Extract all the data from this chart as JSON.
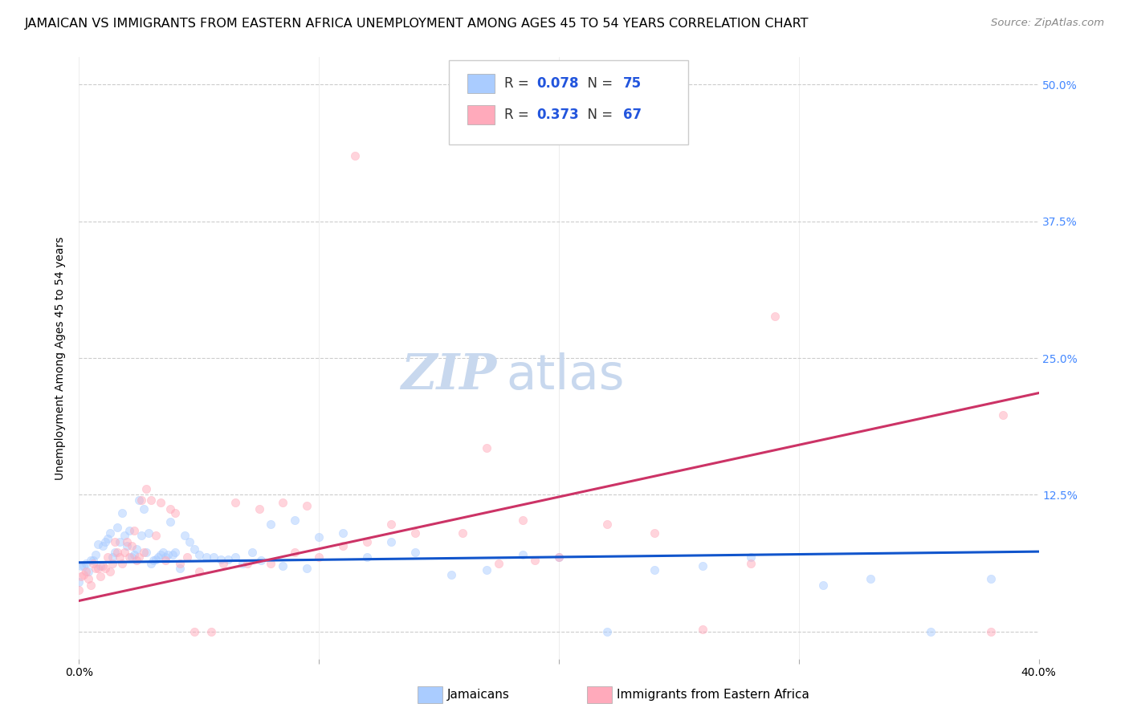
{
  "title": "JAMAICAN VS IMMIGRANTS FROM EASTERN AFRICA UNEMPLOYMENT AMONG AGES 45 TO 54 YEARS CORRELATION CHART",
  "source": "Source: ZipAtlas.com",
  "ylabel": "Unemployment Among Ages 45 to 54 years",
  "xlim": [
    0.0,
    0.4
  ],
  "ylim": [
    -0.025,
    0.525
  ],
  "yticks": [
    0.0,
    0.125,
    0.25,
    0.375,
    0.5
  ],
  "ytick_labels": [
    "",
    "12.5%",
    "25.0%",
    "37.5%",
    "50.0%"
  ],
  "xticks": [
    0.0,
    0.1,
    0.2,
    0.3,
    0.4
  ],
  "xtick_labels": [
    "0.0%",
    "",
    "",
    "",
    "40.0%"
  ],
  "background_color": "#ffffff",
  "grid_color": "#cccccc",
  "watermark_zip": "ZIP",
  "watermark_atlas": "atlas",
  "series": [
    {
      "name": "Jamaicans",
      "R": 0.078,
      "N": 75,
      "color": "#aaccff",
      "edge_color": "#aaccff",
      "line_color": "#1155cc",
      "x": [
        0.0,
        0.001,
        0.002,
        0.003,
        0.004,
        0.005,
        0.006,
        0.007,
        0.008,
        0.009,
        0.01,
        0.011,
        0.012,
        0.013,
        0.014,
        0.015,
        0.016,
        0.017,
        0.018,
        0.019,
        0.02,
        0.021,
        0.022,
        0.023,
        0.024,
        0.025,
        0.026,
        0.027,
        0.028,
        0.029,
        0.03,
        0.031,
        0.032,
        0.033,
        0.034,
        0.035,
        0.036,
        0.037,
        0.038,
        0.039,
        0.04,
        0.042,
        0.044,
        0.046,
        0.048,
        0.05,
        0.053,
        0.056,
        0.059,
        0.062,
        0.065,
        0.068,
        0.072,
        0.076,
        0.08,
        0.085,
        0.09,
        0.095,
        0.1,
        0.11,
        0.12,
        0.13,
        0.14,
        0.155,
        0.17,
        0.185,
        0.2,
        0.22,
        0.24,
        0.26,
        0.28,
        0.31,
        0.33,
        0.355,
        0.38
      ],
      "y": [
        0.045,
        0.06,
        0.06,
        0.062,
        0.055,
        0.065,
        0.065,
        0.07,
        0.08,
        0.06,
        0.078,
        0.082,
        0.085,
        0.09,
        0.068,
        0.072,
        0.095,
        0.082,
        0.108,
        0.088,
        0.078,
        0.092,
        0.068,
        0.07,
        0.075,
        0.12,
        0.088,
        0.112,
        0.072,
        0.09,
        0.062,
        0.065,
        0.066,
        0.068,
        0.07,
        0.072,
        0.068,
        0.07,
        0.1,
        0.07,
        0.072,
        0.058,
        0.088,
        0.082,
        0.075,
        0.07,
        0.068,
        0.068,
        0.066,
        0.066,
        0.068,
        0.062,
        0.072,
        0.065,
        0.098,
        0.06,
        0.102,
        0.058,
        0.086,
        0.09,
        0.068,
        0.082,
        0.072,
        0.052,
        0.056,
        0.07,
        0.068,
        0.0,
        0.056,
        0.06,
        0.068,
        0.042,
        0.048,
        0.0,
        0.048
      ]
    },
    {
      "name": "Immigrants from Eastern Africa",
      "R": 0.373,
      "N": 67,
      "color": "#ffaabb",
      "edge_color": "#ffaabb",
      "line_color": "#cc3366",
      "x": [
        0.0,
        0.001,
        0.002,
        0.003,
        0.004,
        0.005,
        0.006,
        0.007,
        0.008,
        0.009,
        0.01,
        0.011,
        0.012,
        0.013,
        0.014,
        0.015,
        0.016,
        0.017,
        0.018,
        0.019,
        0.02,
        0.021,
        0.022,
        0.023,
        0.024,
        0.025,
        0.026,
        0.027,
        0.028,
        0.03,
        0.032,
        0.034,
        0.036,
        0.038,
        0.04,
        0.042,
        0.045,
        0.048,
        0.05,
        0.055,
        0.06,
        0.065,
        0.07,
        0.075,
        0.08,
        0.085,
        0.09,
        0.095,
        0.1,
        0.11,
        0.115,
        0.12,
        0.13,
        0.14,
        0.16,
        0.17,
        0.175,
        0.185,
        0.19,
        0.2,
        0.22,
        0.24,
        0.26,
        0.28,
        0.29,
        0.38,
        0.385
      ],
      "y": [
        0.038,
        0.05,
        0.052,
        0.055,
        0.048,
        0.042,
        0.062,
        0.058,
        0.058,
        0.05,
        0.06,
        0.058,
        0.068,
        0.055,
        0.062,
        0.082,
        0.072,
        0.068,
        0.062,
        0.072,
        0.082,
        0.068,
        0.078,
        0.092,
        0.065,
        0.068,
        0.12,
        0.072,
        0.13,
        0.12,
        0.088,
        0.118,
        0.065,
        0.112,
        0.108,
        0.062,
        0.068,
        0.0,
        0.055,
        0.0,
        0.062,
        0.118,
        0.062,
        0.112,
        0.062,
        0.118,
        0.072,
        0.115,
        0.068,
        0.078,
        0.435,
        0.082,
        0.098,
        0.09,
        0.09,
        0.168,
        0.062,
        0.102,
        0.065,
        0.068,
        0.098,
        0.09,
        0.002,
        0.062,
        0.288,
        0.0,
        0.198
      ]
    }
  ],
  "trend_lines": [
    {
      "x_start": 0.0,
      "x_end": 0.4,
      "y_start": 0.063,
      "y_end": 0.073,
      "color": "#1155cc",
      "linewidth": 2.2
    },
    {
      "x_start": 0.0,
      "x_end": 0.4,
      "y_start": 0.028,
      "y_end": 0.218,
      "color": "#cc3366",
      "linewidth": 2.2
    }
  ],
  "title_fontsize": 11.5,
  "source_fontsize": 9.5,
  "axis_label_fontsize": 10,
  "tick_fontsize": 10,
  "legend_fontsize": 12,
  "watermark_fontsize_zip": 44,
  "watermark_fontsize_atlas": 44,
  "watermark_color_zip": "#c8d8ee",
  "watermark_color_atlas": "#c8d8ee",
  "right_tick_color": "#4488ff",
  "scatter_size": 55,
  "scatter_alpha": 0.5
}
